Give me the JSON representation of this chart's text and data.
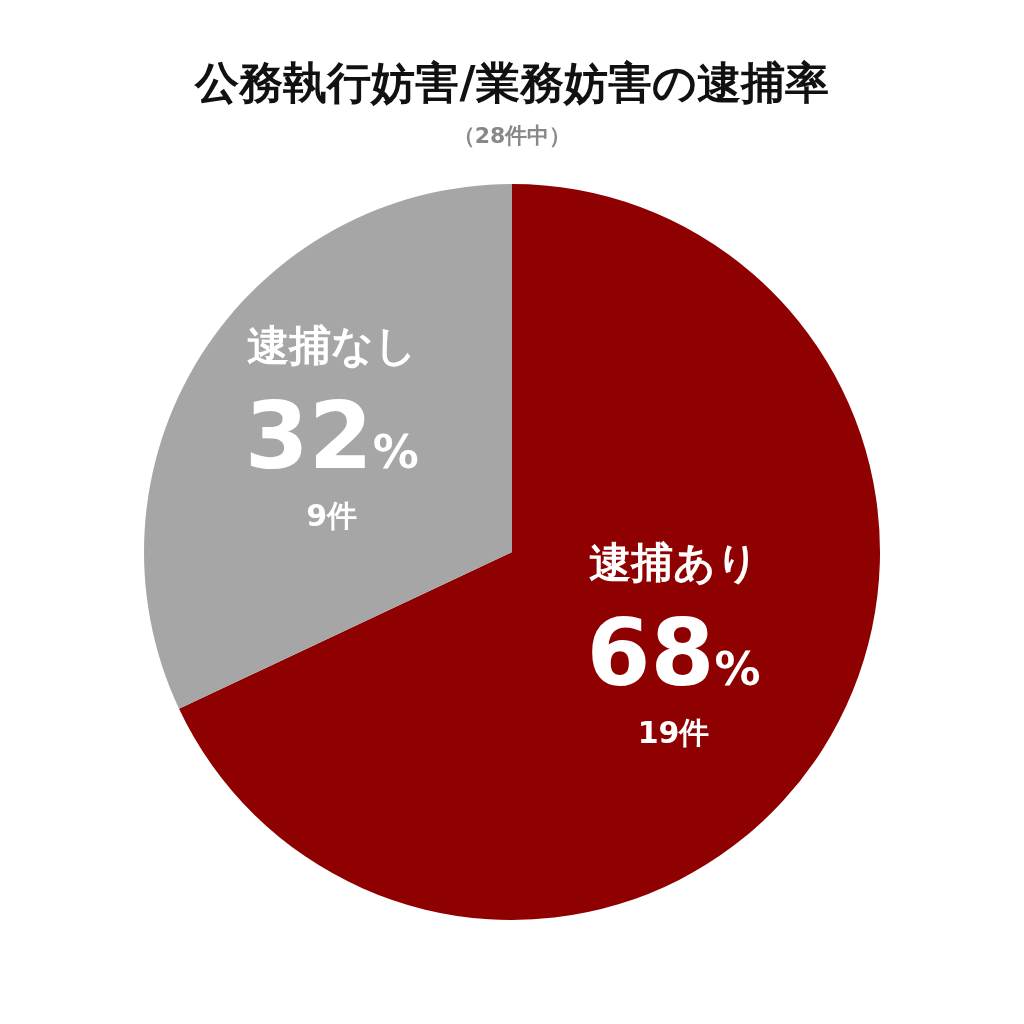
{
  "chart_data": {
    "type": "pie",
    "title": "公務執行妨害/業務妨害の逮捕率",
    "subtitle": "（28件中）",
    "categories": [
      "逮捕あり",
      "逮捕なし"
    ],
    "values": [
      68,
      32
    ],
    "colors": [
      "#8f0000",
      "#a6a6a6"
    ],
    "value_labels": [
      "68%",
      "32%"
    ],
    "annotations": [
      "19件",
      "9件"
    ]
  }
}
